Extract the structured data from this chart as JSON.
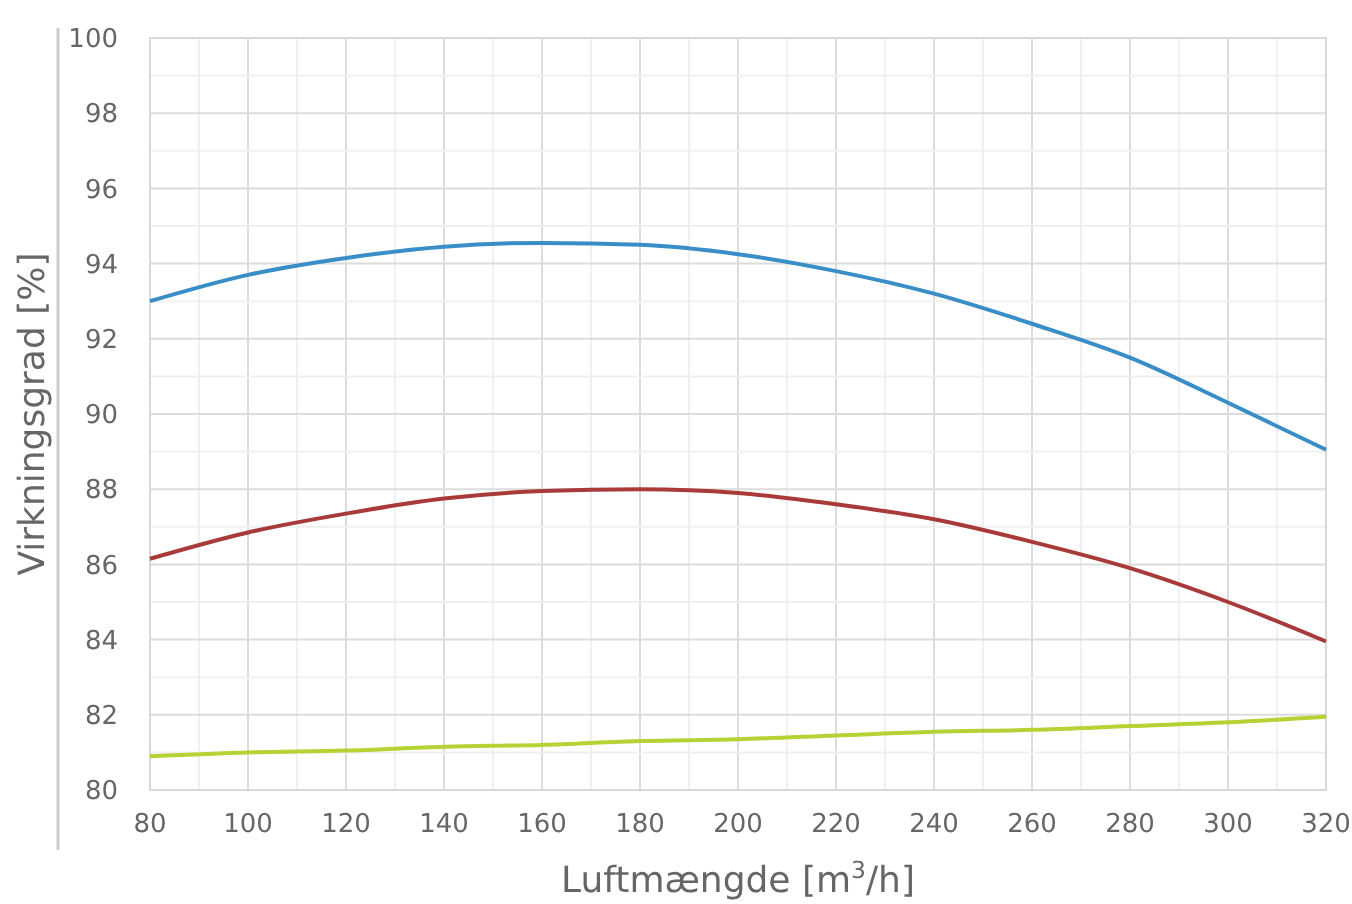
{
  "chart_data": {
    "type": "line",
    "xlabel": "Luftmængde [m$^{3}$/h]",
    "ylabel": "Virkningsgrad [%]",
    "x": [
      80,
      100,
      120,
      140,
      160,
      180,
      200,
      220,
      240,
      260,
      280,
      300,
      320
    ],
    "series": [
      {
        "color": "#3a8ec8",
        "values": [
          93.0,
          93.7,
          94.15,
          94.45,
          94.55,
          94.5,
          94.25,
          93.8,
          93.2,
          92.4,
          91.5,
          90.3,
          89.05
        ]
      },
      {
        "color": "#a83a3a",
        "values": [
          86.15,
          86.85,
          87.35,
          87.75,
          87.95,
          88.0,
          87.9,
          87.6,
          87.2,
          86.6,
          85.9,
          85.0,
          83.95
        ]
      },
      {
        "color": "#b5d334",
        "values": [
          80.9,
          81.0,
          81.05,
          81.15,
          81.2,
          81.3,
          81.35,
          81.45,
          81.55,
          81.6,
          81.7,
          81.8,
          81.95
        ]
      }
    ],
    "xlim": [
      80,
      320
    ],
    "ylim": [
      80,
      100
    ],
    "xticks": [
      80,
      {
        "value": 90,
        "label": null
      },
      100,
      {
        "value": 110,
        "label": null
      },
      120,
      {
        "value": 130,
        "label": null
      },
      140,
      {
        "value": 150,
        "label": null
      },
      160,
      {
        "value": 170,
        "label": null
      },
      180,
      {
        "value": 190,
        "label": null
      },
      200,
      {
        "value": 210,
        "label": null
      },
      220,
      {
        "value": 230,
        "label": null
      },
      240,
      {
        "value": 250,
        "label": null
      },
      260,
      {
        "value": 270,
        "label": null
      },
      280,
      {
        "value": 290,
        "label": null
      },
      300,
      {
        "value": 310,
        "label": null
      },
      320
    ],
    "yticks": [
      80,
      {
        "value": 81,
        "label": null
      },
      82,
      {
        "value": 83,
        "label": null
      },
      84,
      {
        "value": 85,
        "label": null
      },
      86,
      {
        "value": 87,
        "label": null
      },
      88,
      {
        "value": 89,
        "label": null
      },
      90,
      {
        "value": 91,
        "label": null
      },
      92,
      {
        "value": 93,
        "label": null
      },
      94,
      {
        "value": 95,
        "label": null
      },
      96,
      {
        "value": 97,
        "label": null
      },
      98,
      {
        "value": 99,
        "label": null
      },
      100
    ],
    "grid": true,
    "marker": "none",
    "line_style": "solid"
  }
}
